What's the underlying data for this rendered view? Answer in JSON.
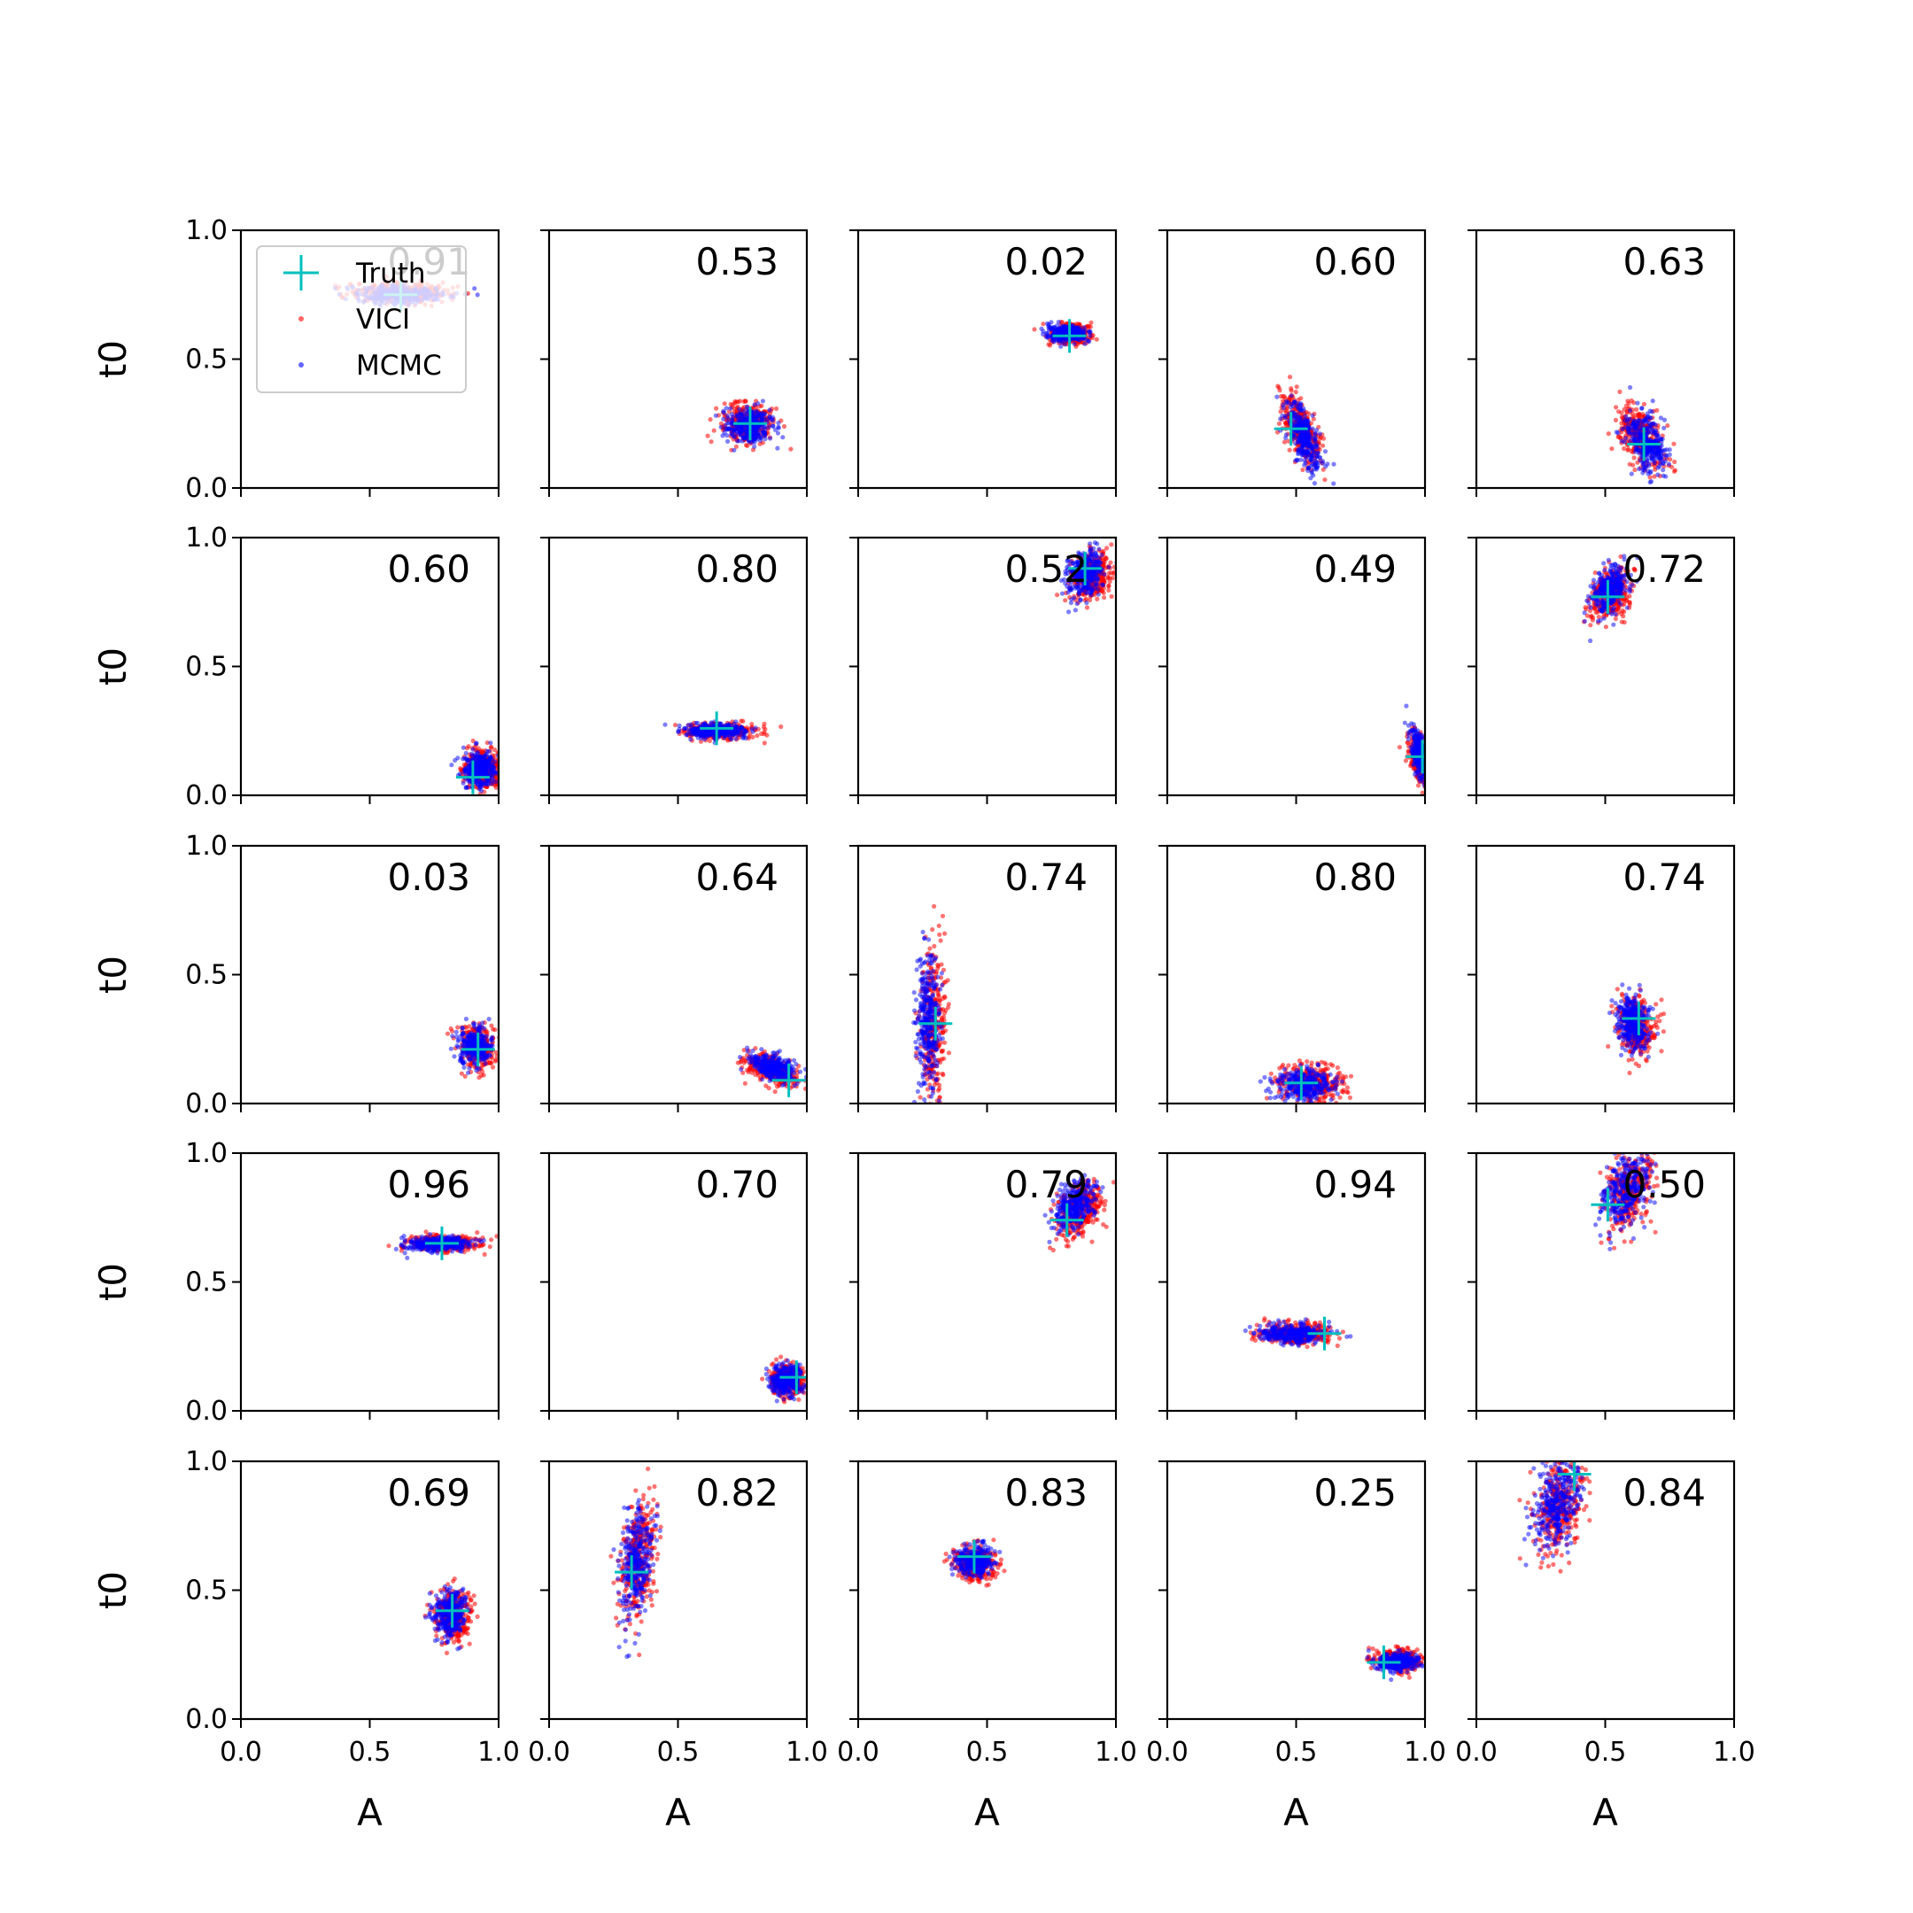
{
  "chart_data": {
    "type": "scatter",
    "grid_rows": 5,
    "grid_cols": 5,
    "xlabel": "A",
    "ylabel": "t0",
    "xlim": [
      0,
      1
    ],
    "ylim": [
      0,
      1
    ],
    "xticks": [
      "0.0",
      "0.5",
      "1.0"
    ],
    "yticks": [
      "0.0",
      "0.5",
      "1.0"
    ],
    "grid": false,
    "colors": {
      "vici": "#ff0000",
      "mcmc": "#0000ff",
      "truth": "#00bfbf"
    },
    "legend": {
      "placement": "top-left of first panel",
      "entries": [
        {
          "label": "Truth",
          "marker": "plus",
          "color": "#00bfbf"
        },
        {
          "label": "VICI",
          "marker": "dot",
          "color": "#ff0000"
        },
        {
          "label": "MCMC",
          "marker": "dot",
          "color": "#0000ff"
        }
      ]
    },
    "panels": [
      {
        "score": "0.91",
        "truth": [
          0.62,
          0.75
        ],
        "vici": {
          "mean": [
            0.62,
            0.76
          ],
          "sd": [
            0.1,
            0.02
          ],
          "rho": 0
        },
        "mcmc": {
          "mean": [
            0.62,
            0.75
          ],
          "sd": [
            0.09,
            0.018
          ],
          "rho": 0
        }
      },
      {
        "score": "0.53",
        "truth": [
          0.78,
          0.25
        ],
        "vici": {
          "mean": [
            0.77,
            0.25
          ],
          "sd": [
            0.05,
            0.04
          ],
          "rho": 0
        },
        "mcmc": {
          "mean": [
            0.78,
            0.24
          ],
          "sd": [
            0.045,
            0.035
          ],
          "rho": 0
        }
      },
      {
        "score": "0.02",
        "truth": [
          0.82,
          0.59
        ],
        "vici": {
          "mean": [
            0.82,
            0.6
          ],
          "sd": [
            0.04,
            0.02
          ],
          "rho": 0
        },
        "mcmc": {
          "mean": [
            0.81,
            0.6
          ],
          "sd": [
            0.035,
            0.017
          ],
          "rho": 0
        }
      },
      {
        "score": "0.60",
        "truth": [
          0.48,
          0.23
        ],
        "vici": {
          "mean": [
            0.52,
            0.23
          ],
          "sd": [
            0.04,
            0.07
          ],
          "rho": -0.6
        },
        "mcmc": {
          "mean": [
            0.53,
            0.2
          ],
          "sd": [
            0.035,
            0.065
          ],
          "rho": -0.6
        }
      },
      {
        "score": "0.63",
        "truth": [
          0.65,
          0.17
        ],
        "vici": {
          "mean": [
            0.64,
            0.2
          ],
          "sd": [
            0.045,
            0.06
          ],
          "rho": -0.4
        },
        "mcmc": {
          "mean": [
            0.66,
            0.18
          ],
          "sd": [
            0.04,
            0.055
          ],
          "rho": -0.4
        }
      },
      {
        "score": "0.60",
        "truth": [
          0.9,
          0.07
        ],
        "vici": {
          "mean": [
            0.94,
            0.1
          ],
          "sd": [
            0.04,
            0.04
          ],
          "rho": 0
        },
        "mcmc": {
          "mean": [
            0.93,
            0.1
          ],
          "sd": [
            0.035,
            0.035
          ],
          "rho": 0
        }
      },
      {
        "score": "0.80",
        "truth": [
          0.65,
          0.26
        ],
        "vici": {
          "mean": [
            0.66,
            0.25
          ],
          "sd": [
            0.07,
            0.015
          ],
          "rho": 0
        },
        "mcmc": {
          "mean": [
            0.64,
            0.25
          ],
          "sd": [
            0.065,
            0.014
          ],
          "rho": 0
        }
      },
      {
        "score": "0.52",
        "truth": [
          0.88,
          0.88
        ],
        "vici": {
          "mean": [
            0.91,
            0.85
          ],
          "sd": [
            0.04,
            0.05
          ],
          "rho": 0.3
        },
        "mcmc": {
          "mean": [
            0.88,
            0.86
          ],
          "sd": [
            0.035,
            0.045
          ],
          "rho": 0.3
        }
      },
      {
        "score": "0.49",
        "truth": [
          0.99,
          0.15
        ],
        "vici": {
          "mean": [
            0.98,
            0.14
          ],
          "sd": [
            0.02,
            0.05
          ],
          "rho": -0.5
        },
        "mcmc": {
          "mean": [
            0.98,
            0.16
          ],
          "sd": [
            0.018,
            0.045
          ],
          "rho": -0.5
        }
      },
      {
        "score": "0.72",
        "truth": [
          0.51,
          0.77
        ],
        "vici": {
          "mean": [
            0.52,
            0.78
          ],
          "sd": [
            0.04,
            0.05
          ],
          "rho": 0.3
        },
        "mcmc": {
          "mean": [
            0.52,
            0.8
          ],
          "sd": [
            0.035,
            0.045
          ],
          "rho": 0.3
        }
      },
      {
        "score": "0.03",
        "truth": [
          0.92,
          0.21
        ],
        "vici": {
          "mean": [
            0.92,
            0.22
          ],
          "sd": [
            0.035,
            0.04
          ],
          "rho": 0
        },
        "mcmc": {
          "mean": [
            0.91,
            0.22
          ],
          "sd": [
            0.03,
            0.035
          ],
          "rho": 0
        }
      },
      {
        "score": "0.64",
        "truth": [
          0.93,
          0.09
        ],
        "vici": {
          "mean": [
            0.86,
            0.13
          ],
          "sd": [
            0.05,
            0.03
          ],
          "rho": -0.5
        },
        "mcmc": {
          "mean": [
            0.87,
            0.14
          ],
          "sd": [
            0.045,
            0.027
          ],
          "rho": -0.5
        }
      },
      {
        "score": "0.74",
        "truth": [
          0.3,
          0.31
        ],
        "vici": {
          "mean": [
            0.29,
            0.3
          ],
          "sd": [
            0.025,
            0.15
          ],
          "rho": 0
        },
        "mcmc": {
          "mean": [
            0.27,
            0.32
          ],
          "sd": [
            0.022,
            0.14
          ],
          "rho": 0
        }
      },
      {
        "score": "0.80",
        "truth": [
          0.52,
          0.08
        ],
        "vici": {
          "mean": [
            0.56,
            0.08
          ],
          "sd": [
            0.06,
            0.035
          ],
          "rho": 0
        },
        "mcmc": {
          "mean": [
            0.53,
            0.07
          ],
          "sd": [
            0.055,
            0.03
          ],
          "rho": 0
        }
      },
      {
        "score": "0.74",
        "truth": [
          0.63,
          0.33
        ],
        "vici": {
          "mean": [
            0.62,
            0.3
          ],
          "sd": [
            0.035,
            0.06
          ],
          "rho": -0.2
        },
        "mcmc": {
          "mean": [
            0.61,
            0.31
          ],
          "sd": [
            0.03,
            0.055
          ],
          "rho": -0.2
        }
      },
      {
        "score": "0.96",
        "truth": [
          0.78,
          0.65
        ],
        "vici": {
          "mean": [
            0.78,
            0.65
          ],
          "sd": [
            0.07,
            0.015
          ],
          "rho": 0
        },
        "mcmc": {
          "mean": [
            0.77,
            0.65
          ],
          "sd": [
            0.065,
            0.013
          ],
          "rho": 0
        }
      },
      {
        "score": "0.70",
        "truth": [
          0.96,
          0.13
        ],
        "vici": {
          "mean": [
            0.92,
            0.12
          ],
          "sd": [
            0.035,
            0.03
          ],
          "rho": 0
        },
        "mcmc": {
          "mean": [
            0.92,
            0.12
          ],
          "sd": [
            0.03,
            0.027
          ],
          "rho": 0
        }
      },
      {
        "score": "0.79",
        "truth": [
          0.81,
          0.74
        ],
        "vici": {
          "mean": [
            0.86,
            0.78
          ],
          "sd": [
            0.045,
            0.05
          ],
          "rho": 0.4
        },
        "mcmc": {
          "mean": [
            0.84,
            0.8
          ],
          "sd": [
            0.04,
            0.045
          ],
          "rho": 0.4
        }
      },
      {
        "score": "0.94",
        "truth": [
          0.61,
          0.3
        ],
        "vici": {
          "mean": [
            0.5,
            0.3
          ],
          "sd": [
            0.07,
            0.02
          ],
          "rho": 0
        },
        "mcmc": {
          "mean": [
            0.48,
            0.3
          ],
          "sd": [
            0.065,
            0.018
          ],
          "rho": 0
        }
      },
      {
        "score": "0.50",
        "truth": [
          0.51,
          0.8
        ],
        "vici": {
          "mean": [
            0.59,
            0.85
          ],
          "sd": [
            0.05,
            0.08
          ],
          "rho": 0.4
        },
        "mcmc": {
          "mean": [
            0.58,
            0.86
          ],
          "sd": [
            0.045,
            0.075
          ],
          "rho": 0.4
        }
      },
      {
        "score": "0.69",
        "truth": [
          0.82,
          0.42
        ],
        "vici": {
          "mean": [
            0.82,
            0.4
          ],
          "sd": [
            0.035,
            0.05
          ],
          "rho": 0
        },
        "mcmc": {
          "mean": [
            0.81,
            0.41
          ],
          "sd": [
            0.03,
            0.045
          ],
          "rho": 0
        }
      },
      {
        "score": "0.82",
        "truth": [
          0.32,
          0.57
        ],
        "vici": {
          "mean": [
            0.35,
            0.62
          ],
          "sd": [
            0.035,
            0.12
          ],
          "rho": 0.3
        },
        "mcmc": {
          "mean": [
            0.34,
            0.61
          ],
          "sd": [
            0.03,
            0.11
          ],
          "rho": 0.3
        }
      },
      {
        "score": "0.83",
        "truth": [
          0.45,
          0.63
        ],
        "vici": {
          "mean": [
            0.45,
            0.6
          ],
          "sd": [
            0.04,
            0.035
          ],
          "rho": 0
        },
        "mcmc": {
          "mean": [
            0.45,
            0.61
          ],
          "sd": [
            0.035,
            0.03
          ],
          "rho": 0
        }
      },
      {
        "score": "0.25",
        "truth": [
          0.84,
          0.22
        ],
        "vici": {
          "mean": [
            0.9,
            0.23
          ],
          "sd": [
            0.045,
            0.02
          ],
          "rho": 0
        },
        "mcmc": {
          "mean": [
            0.89,
            0.22
          ],
          "sd": [
            0.04,
            0.018
          ],
          "rho": 0
        }
      },
      {
        "score": "0.84",
        "truth": [
          0.38,
          0.95
        ],
        "vici": {
          "mean": [
            0.32,
            0.82
          ],
          "sd": [
            0.05,
            0.09
          ],
          "rho": 0.3
        },
        "mcmc": {
          "mean": [
            0.31,
            0.84
          ],
          "sd": [
            0.045,
            0.08
          ],
          "rho": 0.3
        }
      }
    ]
  }
}
